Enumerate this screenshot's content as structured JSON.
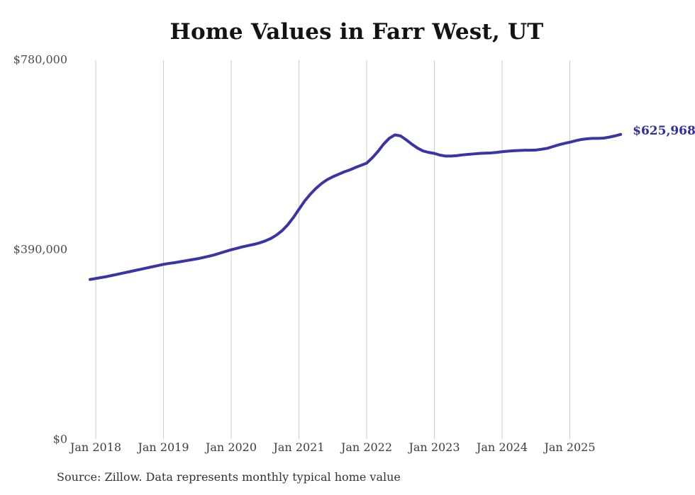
{
  "title": "Home Values in Farr West, UT",
  "source_note": "Source: Zillow. Data represents monthly typical home value",
  "colors": {
    "line": "#3a34a4",
    "grid": "#cccccc",
    "title": "#131313",
    "y_axis_text": "#4b4b4b",
    "x_axis_text": "#3d3d3d",
    "source_text": "#323232",
    "end_label": "#322d9d",
    "background": "#ffffff"
  },
  "chart_data": {
    "type": "line",
    "title": "Home Values in Farr West, UT",
    "xlabel": "",
    "ylabel": "",
    "ylim": [
      0,
      780000
    ],
    "grid": "vertical-only",
    "legend": "none",
    "end_label": "$625,968",
    "end_value": 625968,
    "y_ticks": [
      {
        "value": 0,
        "label": "$0"
      },
      {
        "value": 390000,
        "label": "$390,000"
      },
      {
        "value": 780000,
        "label": "$780,000"
      }
    ],
    "x_ticks": [
      {
        "label": "Jan 2018"
      },
      {
        "label": "Jan 2019"
      },
      {
        "label": "Jan 2020"
      },
      {
        "label": "Jan 2021"
      },
      {
        "label": "Jan 2022"
      },
      {
        "label": "Jan 2023"
      },
      {
        "label": "Jan 2024"
      },
      {
        "label": "Jan 2025"
      }
    ],
    "series": [
      {
        "name": "Monthly typical home value",
        "start_month": "2017-12",
        "end_month": "2025-10",
        "values": [
          328000,
          330000,
          332000,
          334000,
          336500,
          339000,
          341500,
          344000,
          346500,
          349000,
          351500,
          354000,
          356500,
          359000,
          361000,
          362500,
          364500,
          366500,
          368500,
          370500,
          373000,
          375500,
          378500,
          382000,
          385500,
          389000,
          392000,
          395000,
          397500,
          400000,
          403000,
          407000,
          412000,
          419000,
          428000,
          440000,
          455000,
          472000,
          489000,
          503000,
          515000,
          525000,
          533000,
          539000,
          544000,
          549000,
          553000,
          558000,
          562500,
          567000,
          578000,
          591000,
          606000,
          618000,
          625000,
          623000,
          615000,
          606000,
          598000,
          592000,
          589000,
          587000,
          583500,
          581500,
          581500,
          582500,
          584000,
          585000,
          586000,
          587000,
          587500,
          588000,
          589000,
          590500,
          591500,
          592500,
          593000,
          593500,
          593500,
          594000,
          595500,
          597500,
          601000,
          604500,
          607500,
          610000,
          613000,
          615500,
          617000,
          618000,
          618000,
          618500,
          620500,
          623000,
          625968
        ]
      }
    ]
  }
}
